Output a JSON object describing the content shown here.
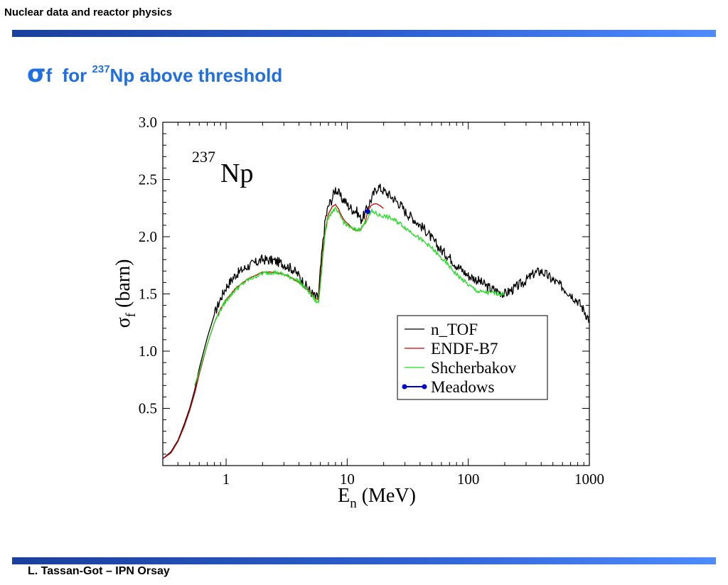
{
  "header": {
    "title": "Nuclear data and reactor physics"
  },
  "slide": {
    "title_symbol": "σ",
    "title_sub": "f",
    "title_mid": "for",
    "title_sup": "237",
    "title_rest": "Np above threshold"
  },
  "footer": {
    "text": "L. Tassan-Got – IPN Orsay"
  },
  "colors": {
    "accent_blue": "#1f6fe0",
    "bar_dark": "#1a3f9c",
    "bar_light": "#4d8bff",
    "ntof": "#000000",
    "endf": "#cc0000",
    "shcherbakov": "#22dd22",
    "meadows": "#0000cc"
  },
  "chart_data": {
    "type": "line",
    "x_scale": "log",
    "xlim": [
      0.3,
      1000
    ],
    "ylim": [
      0,
      3.0
    ],
    "x_ticks": [
      1,
      10,
      100,
      1000
    ],
    "x_tick_labels": [
      "1",
      "10",
      "100",
      "1000"
    ],
    "y_ticks": [
      0.5,
      1.0,
      1.5,
      2.0,
      2.5,
      3.0
    ],
    "y_tick_labels": [
      "0.5",
      "1.0",
      "1.5",
      "2.0",
      "2.5",
      "3.0"
    ],
    "xlabel_main": "E",
    "xlabel_sub": "n",
    "xlabel_unit": " (MeV)",
    "ylabel_main": "σ",
    "ylabel_sub": "f",
    "ylabel_unit": " (barn)",
    "annotation_sup": "237",
    "annotation_text": "Np",
    "legend_position": "lower-right",
    "series": [
      {
        "name": "n_TOF",
        "style": "line",
        "x": [
          0.3,
          0.35,
          0.4,
          0.45,
          0.5,
          0.55,
          0.6,
          0.7,
          0.8,
          0.9,
          1.0,
          1.2,
          1.5,
          2.0,
          2.5,
          3.0,
          3.5,
          4.0,
          4.5,
          5.0,
          5.5,
          5.8,
          6.0,
          6.3,
          6.6,
          7.0,
          7.5,
          8.0,
          8.5,
          9.0,
          9.5,
          10,
          11,
          12,
          13,
          14,
          15,
          16,
          17,
          18,
          20,
          22,
          25,
          28,
          30,
          35,
          40,
          45,
          50,
          60,
          70,
          80,
          100,
          120,
          150,
          200,
          250,
          300,
          350,
          400,
          450,
          500,
          600,
          700,
          800,
          900,
          1000
        ],
        "y": [
          0.06,
          0.12,
          0.22,
          0.36,
          0.5,
          0.66,
          0.85,
          1.12,
          1.32,
          1.46,
          1.56,
          1.67,
          1.74,
          1.8,
          1.79,
          1.76,
          1.72,
          1.66,
          1.58,
          1.52,
          1.47,
          1.48,
          1.7,
          1.95,
          2.15,
          2.27,
          2.33,
          2.42,
          2.38,
          2.33,
          2.32,
          2.28,
          2.24,
          2.22,
          2.15,
          2.2,
          2.28,
          2.34,
          2.4,
          2.44,
          2.4,
          2.37,
          2.32,
          2.27,
          2.22,
          2.16,
          2.1,
          2.05,
          1.98,
          1.88,
          1.82,
          1.75,
          1.66,
          1.62,
          1.55,
          1.5,
          1.56,
          1.62,
          1.68,
          1.7,
          1.66,
          1.62,
          1.56,
          1.5,
          1.44,
          1.36,
          1.27
        ]
      },
      {
        "name": "ENDF-B7",
        "style": "line",
        "x": [
          0.3,
          0.35,
          0.4,
          0.45,
          0.5,
          0.55,
          0.6,
          0.7,
          0.8,
          0.9,
          1.0,
          1.2,
          1.5,
          2.0,
          2.5,
          3.0,
          3.5,
          4.0,
          4.5,
          5.0,
          5.5,
          5.8,
          6.0,
          6.3,
          6.6,
          7.0,
          7.5,
          8.0,
          8.5,
          9.0,
          9.5,
          10,
          11,
          12,
          13,
          14,
          15,
          16,
          17,
          18,
          20
        ],
        "y": [
          0.06,
          0.11,
          0.21,
          0.34,
          0.48,
          0.63,
          0.8,
          1.06,
          1.25,
          1.37,
          1.45,
          1.55,
          1.63,
          1.69,
          1.69,
          1.67,
          1.64,
          1.6,
          1.55,
          1.51,
          1.46,
          1.45,
          1.62,
          1.88,
          2.06,
          2.2,
          2.26,
          2.28,
          2.24,
          2.18,
          2.14,
          2.12,
          2.07,
          2.05,
          2.07,
          2.12,
          2.24,
          2.28,
          2.29,
          2.28,
          2.25
        ]
      },
      {
        "name": "Shcherbakov",
        "style": "line",
        "x": [
          0.55,
          0.6,
          0.7,
          0.8,
          0.9,
          1.0,
          1.2,
          1.5,
          2.0,
          2.5,
          3.0,
          3.5,
          4.0,
          4.5,
          5.0,
          5.5,
          5.8,
          6.0,
          6.3,
          6.6,
          7.0,
          7.5,
          8.0,
          8.5,
          9.0,
          9.5,
          10,
          11,
          12,
          13,
          14,
          15,
          16,
          17,
          18,
          20,
          22,
          25,
          28,
          30,
          35,
          40,
          45,
          50,
          60,
          70,
          80,
          100,
          120,
          150,
          200
        ],
        "y": [
          0.7,
          0.82,
          1.06,
          1.25,
          1.36,
          1.44,
          1.54,
          1.62,
          1.68,
          1.69,
          1.67,
          1.64,
          1.61,
          1.55,
          1.5,
          1.44,
          1.42,
          1.58,
          1.84,
          2.04,
          2.17,
          2.22,
          2.24,
          2.2,
          2.16,
          2.12,
          2.1,
          2.07,
          2.06,
          2.07,
          2.12,
          2.18,
          2.22,
          2.21,
          2.19,
          2.18,
          2.17,
          2.14,
          2.11,
          2.08,
          2.03,
          1.98,
          1.94,
          1.9,
          1.81,
          1.74,
          1.67,
          1.58,
          1.52,
          1.51,
          1.5
        ]
      },
      {
        "name": "Meadows",
        "style": "point",
        "x": [
          14.8
        ],
        "y": [
          2.22
        ]
      }
    ]
  }
}
